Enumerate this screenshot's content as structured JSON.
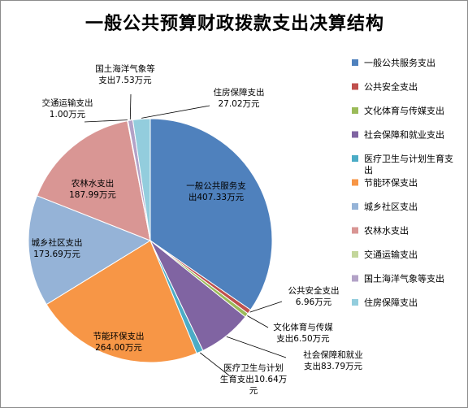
{
  "chart_data": {
    "type": "pie",
    "title": "一般公共预算财政拨款支出决算结构",
    "unit": "万元",
    "categories": [
      "一般公共服务支出",
      "公共安全支出",
      "文化体育与传媒支出",
      "社会保障和就业支出",
      "医疗卫生与计划生育支出",
      "节能环保支出",
      "城乡社区支出",
      "农林水支出",
      "交通运输支出",
      "国土海洋气象等支出",
      "住房保障支出"
    ],
    "values": [
      407.33,
      6.96,
      6.5,
      83.79,
      10.64,
      264.0,
      173.69,
      187.99,
      1.0,
      7.53,
      27.02
    ],
    "colors": [
      "#4f81bd",
      "#c0504d",
      "#9bbb59",
      "#8064a2",
      "#4bacc6",
      "#f79646",
      "#95b3d7",
      "#d99694",
      "#c3d69b",
      "#b3a2c7",
      "#93cddd"
    ],
    "data_labels": [
      [
        "一般公共服务支",
        "出407.33万元"
      ],
      [
        "公共安全支出",
        "6.96万元"
      ],
      [
        "文化体育与传媒",
        "支出6.50万元"
      ],
      [
        "社会保障和就业",
        "支出83.79万元"
      ],
      [
        "医疗卫生与计划",
        "生育支出10.64万",
        "元"
      ],
      [
        "节能环保支出",
        "264.00万元"
      ],
      [
        "城乡社区支出",
        "173.69万元"
      ],
      [
        "农林水支出",
        "187.99万元"
      ],
      [
        "交通运输支出",
        "1.00万元"
      ],
      [
        "国土海洋气象等",
        "支出7.53万元"
      ],
      [
        "住房保障支出",
        "27.02万元"
      ]
    ],
    "legend": {
      "position": "right",
      "entries": [
        "一般公共服务支出",
        "公共安全支出",
        "文化体育与传媒支出",
        "社会保障和就业支出",
        "医疗卫生与计划生育支出",
        "节能环保支出",
        "城乡社区支出",
        "农林水支出",
        "交通运输支出",
        "国土海洋气象等支出",
        "住房保障支出"
      ]
    }
  }
}
